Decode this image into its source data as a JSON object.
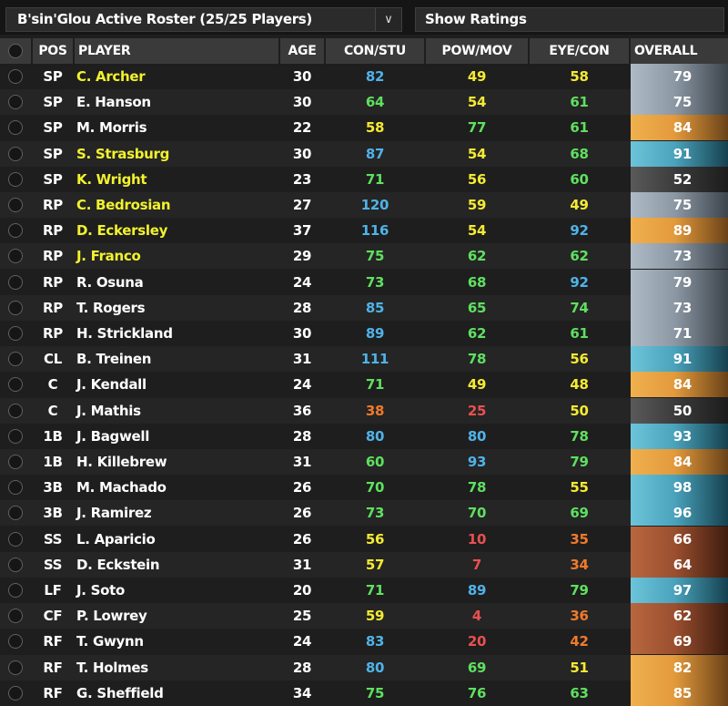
{
  "toolbar": {
    "roster_label": "B'sin'Glou Active Roster (25/25 Players)",
    "chevron": "∨",
    "ratings_label": "Show Ratings"
  },
  "columns": [
    "POS",
    "PLAYER",
    "AGE",
    "CON/STU",
    "POW/MOV",
    "EYE/CON",
    "OVERALL"
  ],
  "colors": {
    "blue": "#4fb3e8",
    "green": "#5fe05f",
    "yellow": "#f5ea32",
    "orange": "#f07a2a",
    "red": "#ea5050",
    "name_yellow": "#f2f22e",
    "name_white": "#ffffff",
    "overall_gray": "#8c98a4",
    "overall_gold": "#e39a3c",
    "overall_teal": "#4aa3bc",
    "overall_dark": "#3a3a3a",
    "overall_brown": "#9b4f2f"
  },
  "players": [
    {
      "pos": "SP",
      "name": "C. Archer",
      "name_color": "yellow",
      "age": "30",
      "con": "82",
      "con_c": "blue",
      "pow": "49",
      "pow_c": "yellow",
      "eye": "58",
      "eye_c": "yellow",
      "overall": "79",
      "overall_c": "gray"
    },
    {
      "pos": "SP",
      "name": "E. Hanson",
      "name_color": "white",
      "age": "30",
      "con": "64",
      "con_c": "green",
      "pow": "54",
      "pow_c": "yellow",
      "eye": "61",
      "eye_c": "green",
      "overall": "75",
      "overall_c": "gray"
    },
    {
      "pos": "SP",
      "name": "M. Morris",
      "name_color": "white",
      "age": "22",
      "con": "58",
      "con_c": "yellow",
      "pow": "77",
      "pow_c": "green",
      "eye": "61",
      "eye_c": "green",
      "overall": "84",
      "overall_c": "gold"
    },
    {
      "pos": "SP",
      "name": "S. Strasburg",
      "name_color": "yellow",
      "age": "30",
      "con": "87",
      "con_c": "blue",
      "pow": "54",
      "pow_c": "yellow",
      "eye": "68",
      "eye_c": "green",
      "overall": "91",
      "overall_c": "teal"
    },
    {
      "pos": "SP",
      "name": "K. Wright",
      "name_color": "yellow",
      "age": "23",
      "con": "71",
      "con_c": "green",
      "pow": "56",
      "pow_c": "yellow",
      "eye": "60",
      "eye_c": "green",
      "overall": "52",
      "overall_c": "dark"
    },
    {
      "pos": "RP",
      "name": "C. Bedrosian",
      "name_color": "yellow",
      "age": "27",
      "con": "120",
      "con_c": "blue",
      "pow": "59",
      "pow_c": "yellow",
      "eye": "49",
      "eye_c": "yellow",
      "overall": "75",
      "overall_c": "gray"
    },
    {
      "pos": "RP",
      "name": "D. Eckersley",
      "name_color": "yellow",
      "age": "37",
      "con": "116",
      "con_c": "blue",
      "pow": "54",
      "pow_c": "yellow",
      "eye": "92",
      "eye_c": "blue",
      "overall": "89",
      "overall_c": "gold"
    },
    {
      "pos": "RP",
      "name": "J. Franco",
      "name_color": "yellow",
      "age": "29",
      "con": "75",
      "con_c": "green",
      "pow": "62",
      "pow_c": "green",
      "eye": "62",
      "eye_c": "green",
      "overall": "73",
      "overall_c": "gray"
    },
    {
      "pos": "RP",
      "name": "R. Osuna",
      "name_color": "white",
      "age": "24",
      "con": "73",
      "con_c": "green",
      "pow": "68",
      "pow_c": "green",
      "eye": "92",
      "eye_c": "blue",
      "overall": "79",
      "overall_c": "gray"
    },
    {
      "pos": "RP",
      "name": "T. Rogers",
      "name_color": "white",
      "age": "28",
      "con": "85",
      "con_c": "blue",
      "pow": "65",
      "pow_c": "green",
      "eye": "74",
      "eye_c": "green",
      "overall": "73",
      "overall_c": "gray"
    },
    {
      "pos": "RP",
      "name": "H. Strickland",
      "name_color": "white",
      "age": "30",
      "con": "89",
      "con_c": "blue",
      "pow": "62",
      "pow_c": "green",
      "eye": "61",
      "eye_c": "green",
      "overall": "71",
      "overall_c": "gray"
    },
    {
      "pos": "CL",
      "name": "B. Treinen",
      "name_color": "white",
      "age": "31",
      "con": "111",
      "con_c": "blue",
      "pow": "78",
      "pow_c": "green",
      "eye": "56",
      "eye_c": "yellow",
      "overall": "91",
      "overall_c": "teal"
    },
    {
      "pos": "C",
      "name": "J. Kendall",
      "name_color": "white",
      "age": "24",
      "con": "71",
      "con_c": "green",
      "pow": "49",
      "pow_c": "yellow",
      "eye": "48",
      "eye_c": "yellow",
      "overall": "84",
      "overall_c": "gold"
    },
    {
      "pos": "C",
      "name": "J. Mathis",
      "name_color": "white",
      "age": "36",
      "con": "38",
      "con_c": "orange",
      "pow": "25",
      "pow_c": "red",
      "eye": "50",
      "eye_c": "yellow",
      "overall": "50",
      "overall_c": "dark"
    },
    {
      "pos": "1B",
      "name": "J. Bagwell",
      "name_color": "white",
      "age": "28",
      "con": "80",
      "con_c": "blue",
      "pow": "80",
      "pow_c": "blue",
      "eye": "78",
      "eye_c": "green",
      "overall": "93",
      "overall_c": "teal"
    },
    {
      "pos": "1B",
      "name": "H. Killebrew",
      "name_color": "white",
      "age": "31",
      "con": "60",
      "con_c": "green",
      "pow": "93",
      "pow_c": "blue",
      "eye": "79",
      "eye_c": "green",
      "overall": "84",
      "overall_c": "gold"
    },
    {
      "pos": "3B",
      "name": "M. Machado",
      "name_color": "white",
      "age": "26",
      "con": "70",
      "con_c": "green",
      "pow": "78",
      "pow_c": "green",
      "eye": "55",
      "eye_c": "yellow",
      "overall": "98",
      "overall_c": "teal"
    },
    {
      "pos": "3B",
      "name": "J. Ramirez",
      "name_color": "white",
      "age": "26",
      "con": "73",
      "con_c": "green",
      "pow": "70",
      "pow_c": "green",
      "eye": "69",
      "eye_c": "green",
      "overall": "96",
      "overall_c": "teal"
    },
    {
      "pos": "SS",
      "name": "L. Aparicio",
      "name_color": "white",
      "age": "26",
      "con": "56",
      "con_c": "yellow",
      "pow": "10",
      "pow_c": "red",
      "eye": "35",
      "eye_c": "orange",
      "overall": "66",
      "overall_c": "brown"
    },
    {
      "pos": "SS",
      "name": "D. Eckstein",
      "name_color": "white",
      "age": "31",
      "con": "57",
      "con_c": "yellow",
      "pow": "7",
      "pow_c": "red",
      "eye": "34",
      "eye_c": "orange",
      "overall": "64",
      "overall_c": "brown"
    },
    {
      "pos": "LF",
      "name": "J. Soto",
      "name_color": "white",
      "age": "20",
      "con": "71",
      "con_c": "green",
      "pow": "89",
      "pow_c": "blue",
      "eye": "79",
      "eye_c": "green",
      "overall": "97",
      "overall_c": "teal"
    },
    {
      "pos": "CF",
      "name": "P. Lowrey",
      "name_color": "white",
      "age": "25",
      "con": "59",
      "con_c": "yellow",
      "pow": "4",
      "pow_c": "red",
      "eye": "36",
      "eye_c": "orange",
      "overall": "62",
      "overall_c": "brown"
    },
    {
      "pos": "RF",
      "name": "T. Gwynn",
      "name_color": "white",
      "age": "24",
      "con": "83",
      "con_c": "blue",
      "pow": "20",
      "pow_c": "red",
      "eye": "42",
      "eye_c": "orange",
      "overall": "69",
      "overall_c": "brown"
    },
    {
      "pos": "RF",
      "name": "T. Holmes",
      "name_color": "white",
      "age": "28",
      "con": "80",
      "con_c": "blue",
      "pow": "69",
      "pow_c": "green",
      "eye": "51",
      "eye_c": "yellow",
      "overall": "82",
      "overall_c": "gold"
    },
    {
      "pos": "RF",
      "name": "G. Sheffield",
      "name_color": "white",
      "age": "34",
      "con": "75",
      "con_c": "green",
      "pow": "76",
      "pow_c": "green",
      "eye": "63",
      "eye_c": "green",
      "overall": "85",
      "overall_c": "gold"
    }
  ]
}
